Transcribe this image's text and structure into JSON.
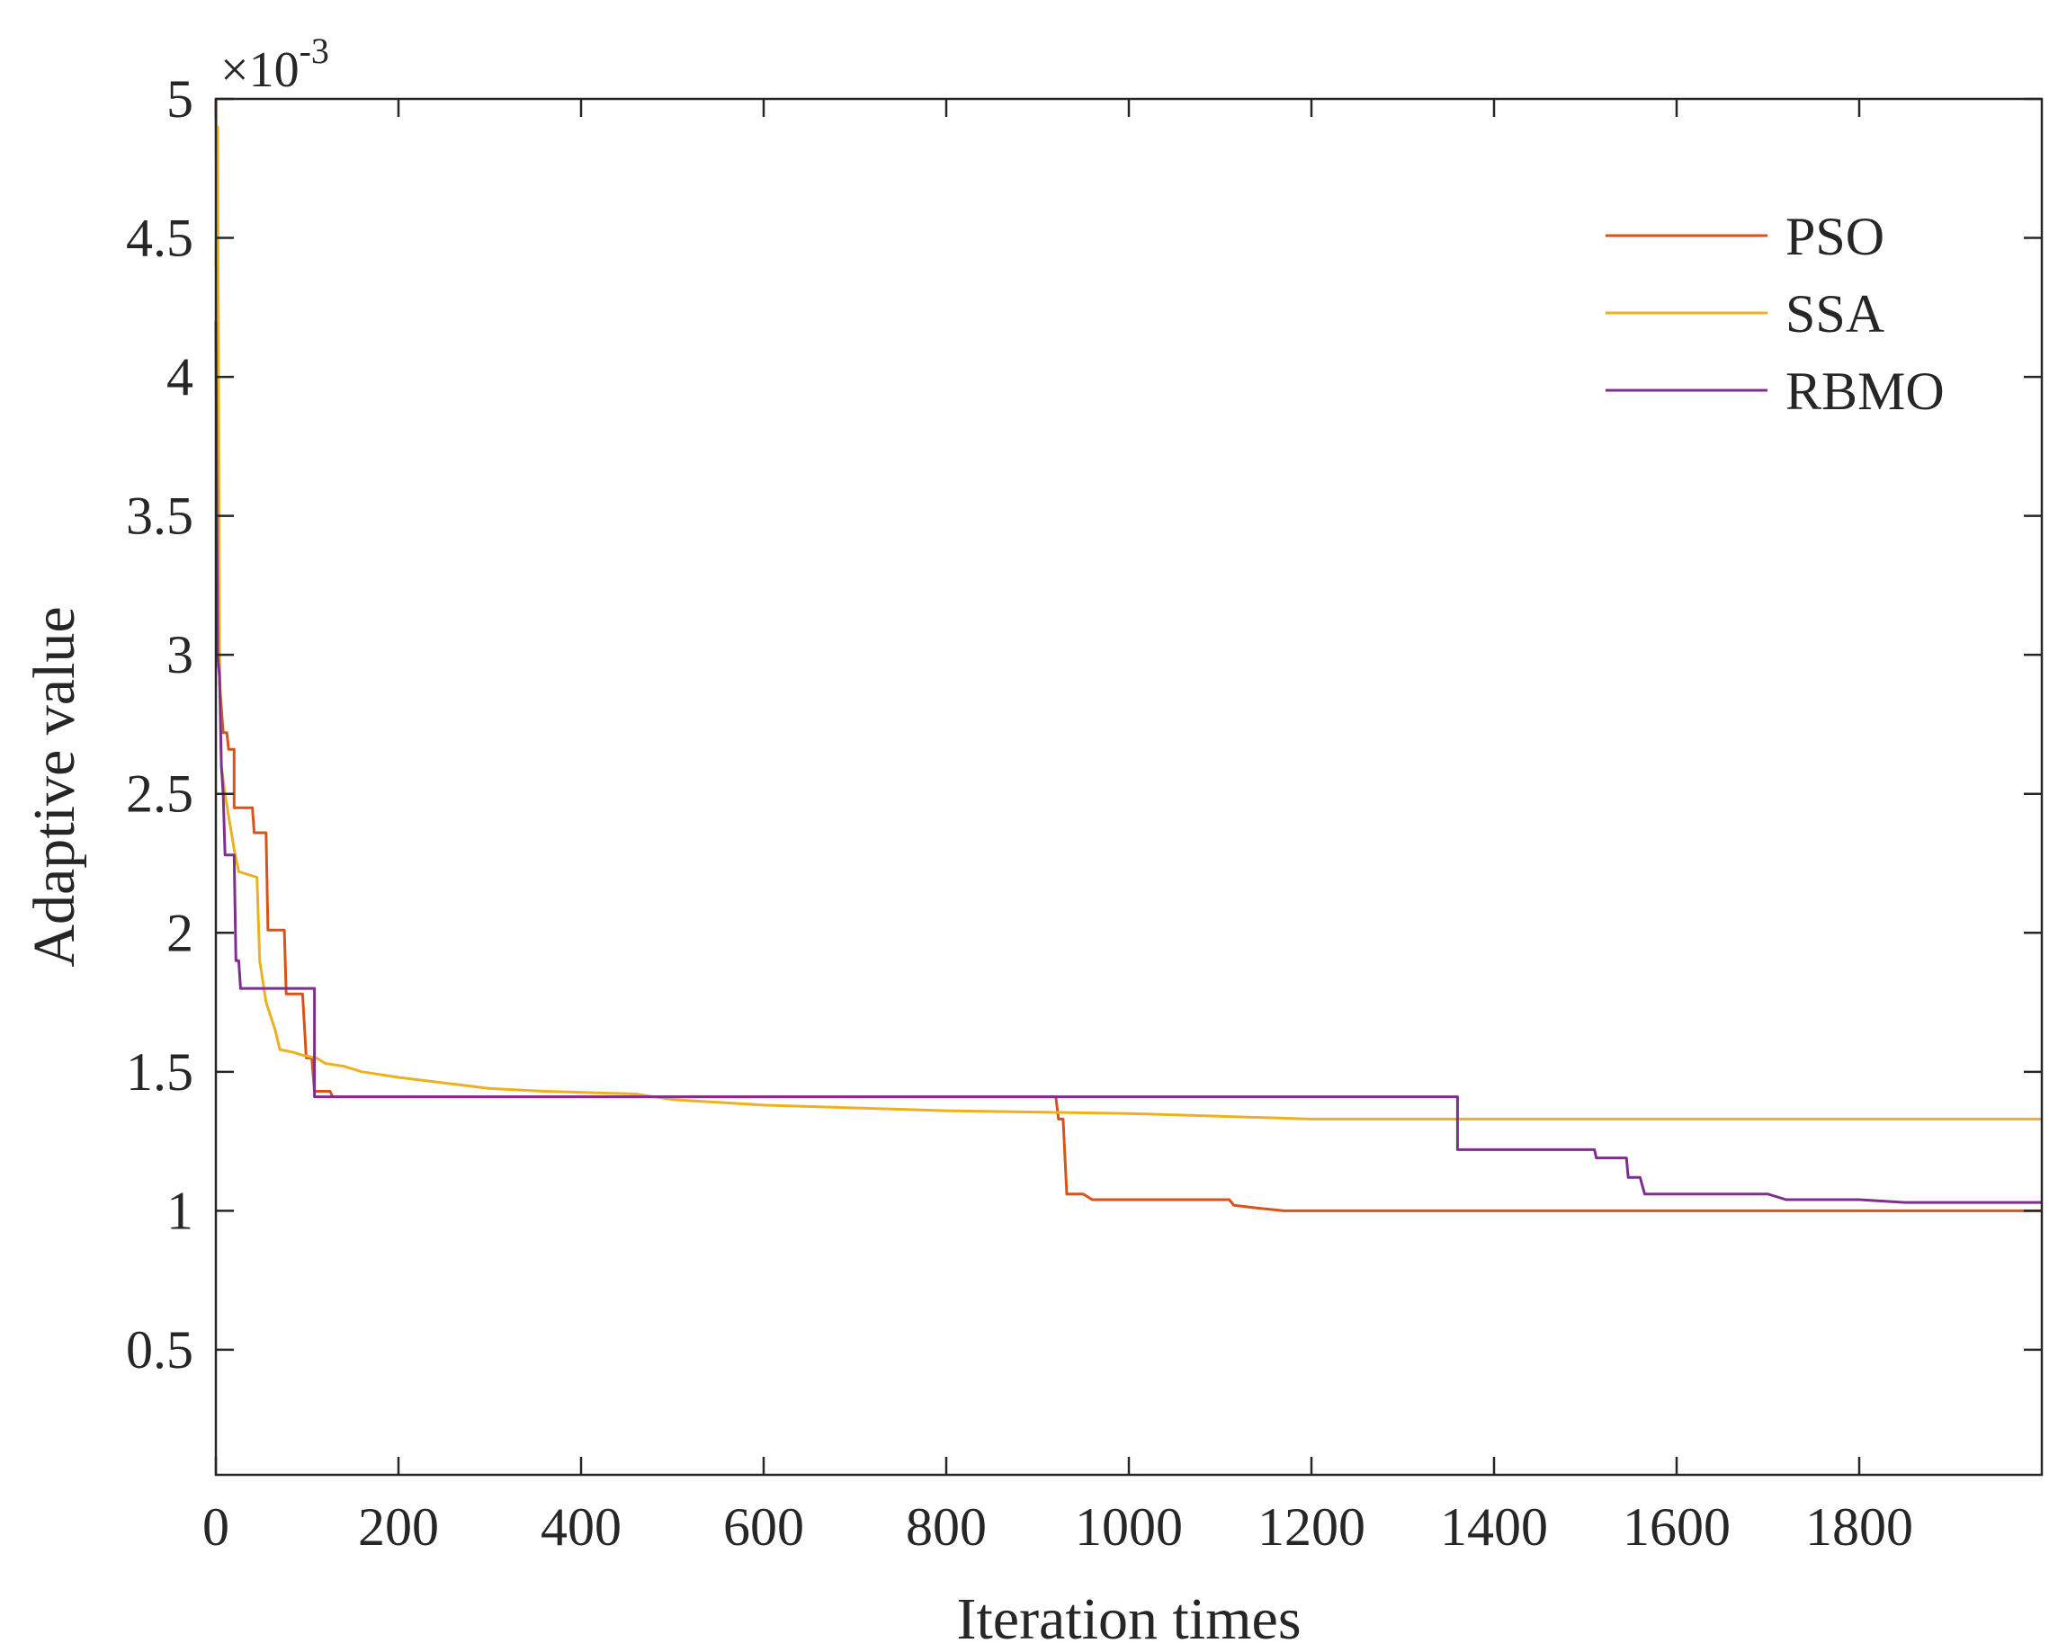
{
  "chart_data": {
    "type": "line",
    "xlabel": "Iteration times",
    "ylabel": "Adaptive value",
    "y_exponent_base": "×10",
    "y_exponent_power": "-3",
    "xlim": [
      0,
      2000
    ],
    "ylim": [
      0.05,
      5
    ],
    "xticks": [
      0,
      200,
      400,
      600,
      800,
      1000,
      1200,
      1400,
      1600,
      1800
    ],
    "xtick_labels": [
      "0",
      "200",
      "400",
      "600",
      "800",
      "1000",
      "1200",
      "1400",
      "1600",
      "1800"
    ],
    "yticks": [
      0.5,
      1,
      1.5,
      2,
      2.5,
      3,
      3.5,
      4,
      4.5,
      5
    ],
    "ytick_labels": [
      "0.5",
      "1",
      "1.5",
      "2",
      "2.5",
      "3",
      "3.5",
      "4",
      "4.5",
      "5"
    ],
    "grid": false,
    "legend_position": "top-right",
    "series": [
      {
        "name": "PSO",
        "color": "#d95319",
        "points": [
          [
            0,
            5
          ],
          [
            4,
            2.9
          ],
          [
            8,
            2.72
          ],
          [
            12,
            2.72
          ],
          [
            14,
            2.66
          ],
          [
            20,
            2.66
          ],
          [
            20,
            2.45
          ],
          [
            40,
            2.45
          ],
          [
            42,
            2.36
          ],
          [
            55,
            2.36
          ],
          [
            57,
            2.01
          ],
          [
            75,
            2.01
          ],
          [
            77,
            1.78
          ],
          [
            95,
            1.78
          ],
          [
            99,
            1.55
          ],
          [
            105,
            1.55
          ],
          [
            108,
            1.43
          ],
          [
            125,
            1.43
          ],
          [
            128,
            1.41
          ],
          [
            450,
            1.41
          ],
          [
            920,
            1.41
          ],
          [
            923,
            1.33
          ],
          [
            928,
            1.33
          ],
          [
            932,
            1.06
          ],
          [
            950,
            1.06
          ],
          [
            960,
            1.04
          ],
          [
            1110,
            1.04
          ],
          [
            1115,
            1.02
          ],
          [
            1140,
            1.01
          ],
          [
            1170,
            1.0
          ],
          [
            2000,
            1.0
          ]
        ]
      },
      {
        "name": "SSA",
        "color": "#edb120",
        "points": [
          [
            0,
            4.4
          ],
          [
            2,
            4.9
          ],
          [
            4,
            3.0
          ],
          [
            6,
            2.6
          ],
          [
            10,
            2.5
          ],
          [
            15,
            2.4
          ],
          [
            20,
            2.3
          ],
          [
            25,
            2.22
          ],
          [
            45,
            2.2
          ],
          [
            48,
            1.9
          ],
          [
            55,
            1.75
          ],
          [
            65,
            1.65
          ],
          [
            70,
            1.58
          ],
          [
            85,
            1.57
          ],
          [
            95,
            1.56
          ],
          [
            110,
            1.55
          ],
          [
            120,
            1.53
          ],
          [
            140,
            1.52
          ],
          [
            160,
            1.5
          ],
          [
            200,
            1.48
          ],
          [
            250,
            1.46
          ],
          [
            300,
            1.44
          ],
          [
            360,
            1.43
          ],
          [
            460,
            1.42
          ],
          [
            500,
            1.4
          ],
          [
            550,
            1.39
          ],
          [
            600,
            1.38
          ],
          [
            700,
            1.37
          ],
          [
            800,
            1.36
          ],
          [
            1000,
            1.35
          ],
          [
            1100,
            1.34
          ],
          [
            1200,
            1.33
          ],
          [
            1400,
            1.33
          ],
          [
            2000,
            1.33
          ]
        ]
      },
      {
        "name": "RBMO",
        "color": "#7e2f8e",
        "points": [
          [
            0,
            4.2
          ],
          [
            2,
            3.0
          ],
          [
            4,
            2.92
          ],
          [
            6,
            2.6
          ],
          [
            8,
            2.5
          ],
          [
            10,
            2.28
          ],
          [
            20,
            2.28
          ],
          [
            22,
            1.9
          ],
          [
            25,
            1.9
          ],
          [
            27,
            1.8
          ],
          [
            108,
            1.8
          ],
          [
            108,
            1.41
          ],
          [
            500,
            1.41
          ],
          [
            1360,
            1.41
          ],
          [
            1360,
            1.22
          ],
          [
            1510,
            1.22
          ],
          [
            1512,
            1.19
          ],
          [
            1545,
            1.19
          ],
          [
            1547,
            1.12
          ],
          [
            1560,
            1.12
          ],
          [
            1565,
            1.06
          ],
          [
            1700,
            1.06
          ],
          [
            1720,
            1.04
          ],
          [
            1800,
            1.04
          ],
          [
            1850,
            1.03
          ],
          [
            2000,
            1.03
          ]
        ]
      }
    ]
  }
}
